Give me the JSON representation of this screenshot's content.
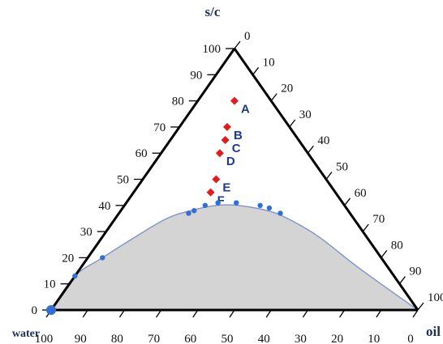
{
  "chart_data": {
    "type": "scatter",
    "subtype": "ternary",
    "title": "",
    "axes": {
      "top": {
        "name": "s/c",
        "ticks": [
          "0",
          "10",
          "20",
          "30",
          "40",
          "50",
          "60",
          "70",
          "80",
          "90",
          "100"
        ]
      },
      "left_edge_ticks": [
        "0",
        "10",
        "20",
        "30",
        "40",
        "50",
        "60",
        "70",
        "80",
        "90",
        "100"
      ],
      "right_edge_ticks": [
        "0",
        "10",
        "20",
        "30",
        "40",
        "50",
        "60",
        "70",
        "80",
        "90",
        "100"
      ],
      "bottom_edge_ticks": [
        "100",
        "90",
        "80",
        "70",
        "60",
        "50",
        "40",
        "30",
        "20",
        "10",
        "0"
      ],
      "bottom_left": {
        "name": "water"
      },
      "bottom_right": {
        "name": "oil"
      }
    },
    "grid": false,
    "legend": null,
    "colors": {
      "region_fill": "#d4d4d4",
      "boundary": "#7f94c8",
      "boundary_points": "#2f6fd6",
      "formulations": "#e31b1b",
      "edges": "#000000"
    },
    "series": [
      {
        "name": "",
        "type": "area",
        "description_points": "phase boundary",
        "points": [
          {
            "sc": 0,
            "water": 100
          },
          {
            "sc": 13,
            "water": 87
          },
          {
            "sc": 20,
            "water": 76
          },
          {
            "sc": 28,
            "water": 63
          },
          {
            "sc": 35,
            "water": 51
          },
          {
            "sc": 38,
            "water": 43
          },
          {
            "sc": 40,
            "water": 35
          },
          {
            "sc": 40,
            "water": 29
          },
          {
            "sc": 38,
            "water": 22
          },
          {
            "sc": 35,
            "water": 18
          },
          {
            "sc": 28,
            "water": 13
          },
          {
            "sc": 16,
            "water": 8
          },
          {
            "sc": 0,
            "water": 0
          }
        ]
      },
      {
        "name": "",
        "type": "scatter",
        "points": [
          {
            "sc": 0,
            "water": 100
          },
          {
            "sc": 13,
            "water": 87
          },
          {
            "sc": 20,
            "water": 76
          },
          {
            "sc": 37,
            "water": 44
          },
          {
            "sc": 38,
            "water": 42
          },
          {
            "sc": 40,
            "water": 38
          },
          {
            "sc": 41,
            "water": 34
          },
          {
            "sc": 41,
            "water": 29
          },
          {
            "sc": 40,
            "water": 23
          },
          {
            "sc": 39,
            "water": 21
          },
          {
            "sc": 37,
            "water": 19
          }
        ]
      },
      {
        "name": "",
        "type": "scatter",
        "points": [
          {
            "label": "A",
            "sc": 80,
            "water": 10
          },
          {
            "label": "B",
            "sc": 70,
            "water": 17
          },
          {
            "label": "C",
            "sc": 65,
            "water": 20
          },
          {
            "label": "D",
            "sc": 60,
            "water": 24
          },
          {
            "label": "E",
            "sc": 50,
            "water": 30
          },
          {
            "label": "F",
            "sc": 45,
            "water": 34
          }
        ]
      }
    ]
  }
}
